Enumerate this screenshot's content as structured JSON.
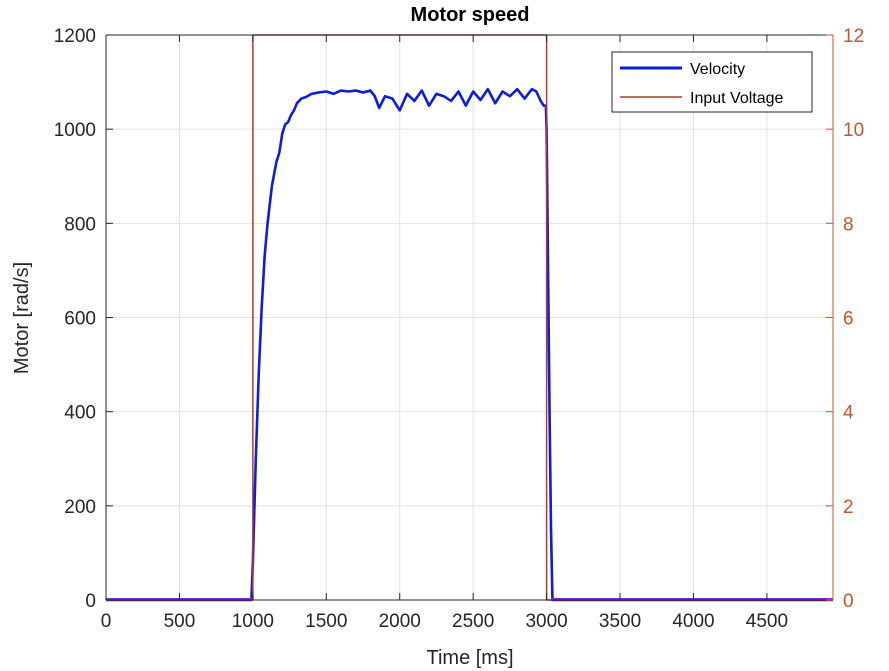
{
  "chart_data": {
    "type": "line",
    "title": "Motor speed",
    "xlabel": "Time [ms]",
    "ylabel": "Motor [rad/s]",
    "y2label": "",
    "xlim": [
      0,
      4950
    ],
    "ylim": [
      0,
      1200
    ],
    "y2lim": [
      0,
      12
    ],
    "xticks": [
      0,
      500,
      1000,
      1500,
      2000,
      2500,
      3000,
      3500,
      4000,
      4500
    ],
    "xtick_labels": [
      "0",
      "500",
      "1000",
      "1500",
      "2000",
      "2500",
      "3000",
      "3500",
      "4000",
      "4500"
    ],
    "yticks": [
      0,
      200,
      400,
      600,
      800,
      1000,
      1200
    ],
    "ytick_labels": [
      "0",
      "200",
      "400",
      "600",
      "800",
      "1000",
      "1200"
    ],
    "y2ticks": [
      0,
      2,
      4,
      6,
      8,
      10,
      12
    ],
    "y2tick_labels": [
      "0",
      "2",
      "4",
      "6",
      "8",
      "10",
      "12"
    ],
    "grid": true,
    "legend": {
      "placement": "top-right",
      "entries": [
        "Velocity",
        "Input Voltage"
      ]
    },
    "colors": {
      "velocity": "#0b1ed9",
      "voltage": "#b2382a",
      "right_axis": "#c7542b",
      "baseline": "#7b2cc9",
      "grid": "#e2e2e2",
      "axis": "#262626"
    },
    "series": [
      {
        "name": "Velocity",
        "axis": "left",
        "x": [
          0,
          990,
          1000,
          1020,
          1040,
          1060,
          1080,
          1100,
          1130,
          1160,
          1180,
          1200,
          1220,
          1240,
          1260,
          1280,
          1300,
          1330,
          1360,
          1400,
          1450,
          1500,
          1550,
          1600,
          1650,
          1700,
          1750,
          1800,
          1830,
          1860,
          1900,
          1950,
          2000,
          2050,
          2100,
          2150,
          2200,
          2250,
          2300,
          2350,
          2400,
          2450,
          2500,
          2550,
          2600,
          2650,
          2700,
          2750,
          2800,
          2850,
          2900,
          2930,
          2960,
          2980,
          2995,
          3000,
          3010,
          3020,
          3030,
          3040,
          3060,
          4950
        ],
        "y": [
          0,
          0,
          80,
          300,
          480,
          620,
          730,
          800,
          880,
          930,
          950,
          990,
          1010,
          1015,
          1030,
          1040,
          1055,
          1065,
          1068,
          1075,
          1078,
          1080,
          1075,
          1082,
          1080,
          1082,
          1078,
          1082,
          1070,
          1045,
          1070,
          1065,
          1040,
          1075,
          1060,
          1082,
          1050,
          1075,
          1070,
          1060,
          1080,
          1050,
          1080,
          1062,
          1085,
          1055,
          1080,
          1070,
          1085,
          1065,
          1085,
          1080,
          1060,
          1050,
          1050,
          1000,
          700,
          400,
          150,
          0,
          0,
          0
        ]
      },
      {
        "name": "Input Voltage",
        "axis": "right",
        "x": [
          0,
          1000,
          1000,
          3000,
          3000,
          4950
        ],
        "y": [
          0,
          0,
          12,
          12,
          0,
          0
        ]
      }
    ]
  }
}
